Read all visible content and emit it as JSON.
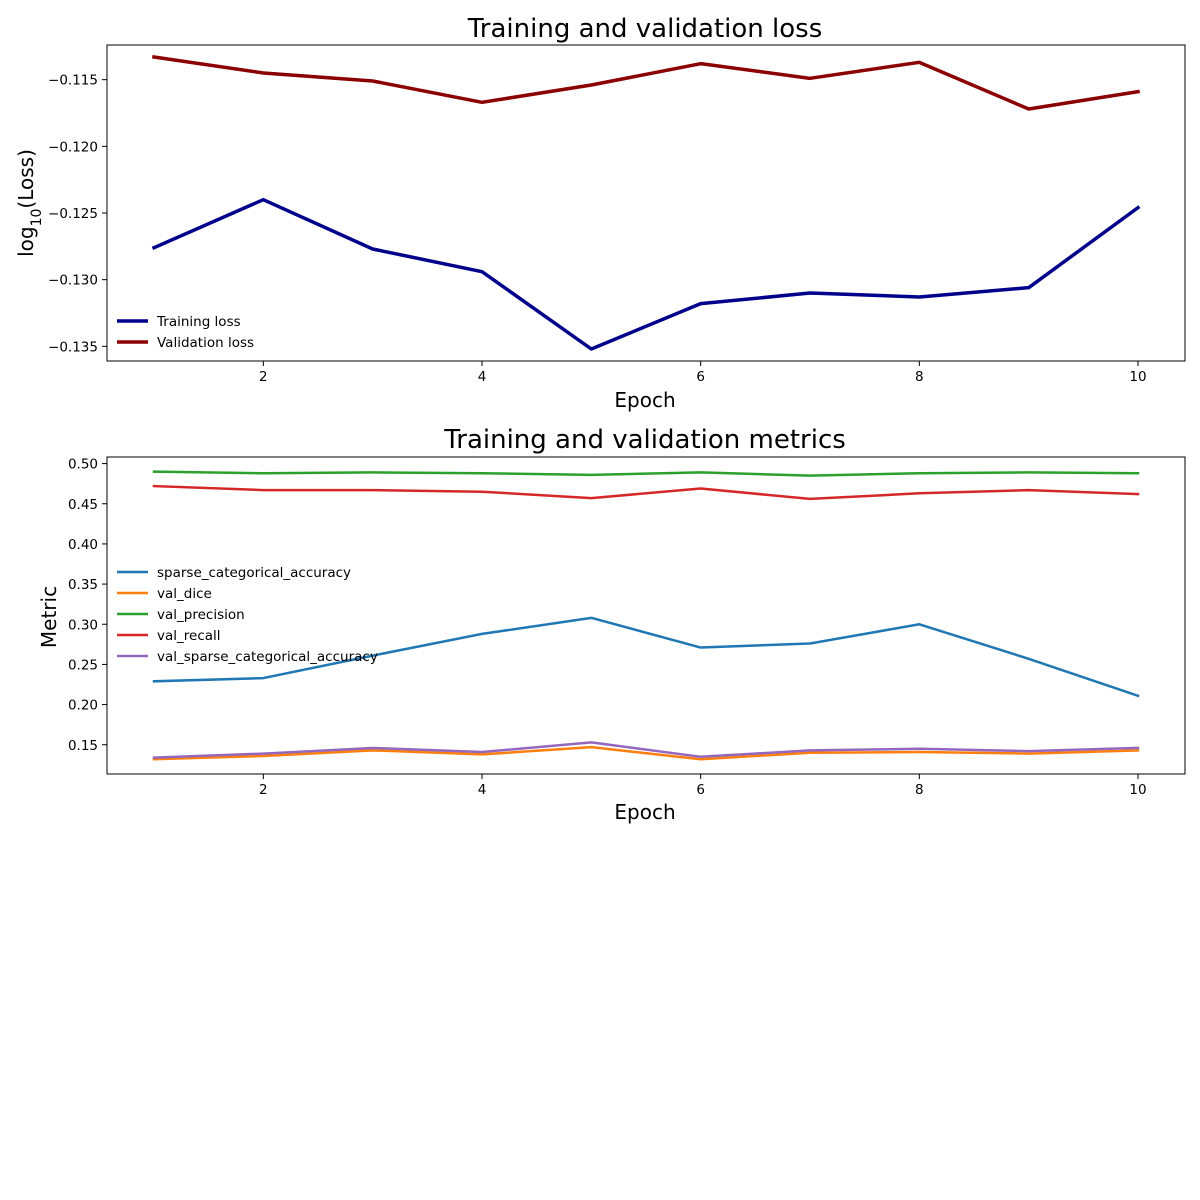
{
  "chart_data": [
    {
      "type": "line",
      "title": "Training and validation loss",
      "xlabel": "Epoch",
      "ylabel_base": "log",
      "ylabel_sub": "10",
      "ylabel_rest": "(Loss)",
      "xlim": [
        0.57,
        10.43
      ],
      "ylim": [
        -0.1361,
        -0.1124
      ],
      "xticks": [
        2,
        4,
        6,
        8,
        10
      ],
      "yticks": [
        -0.135,
        -0.13,
        -0.125,
        -0.12,
        -0.115
      ],
      "ytick_labels": [
        "−0.135",
        "−0.130",
        "−0.125",
        "−0.120",
        "−0.115"
      ],
      "legend_position": "lower-left",
      "x": [
        1,
        2,
        3,
        4,
        5,
        6,
        7,
        8,
        9,
        10
      ],
      "series": [
        {
          "name": "Training loss",
          "color": "#00008b",
          "width": 3.5,
          "values": [
            -0.1276,
            -0.124,
            -0.1277,
            -0.1294,
            -0.1352,
            -0.1318,
            -0.131,
            -0.1313,
            -0.1306,
            -0.1246
          ]
        },
        {
          "name": "Validation loss",
          "color": "#8b0000",
          "width": 3.5,
          "values": [
            -0.1133,
            -0.1145,
            -0.1151,
            -0.1167,
            -0.1154,
            -0.1138,
            -0.1149,
            -0.1137,
            -0.1172,
            -0.1159
          ]
        }
      ]
    },
    {
      "type": "line",
      "title": "Training and validation metrics",
      "xlabel": "Epoch",
      "ylabel": "Metric",
      "xlim": [
        0.57,
        10.43
      ],
      "ylim": [
        0.1136,
        0.5082
      ],
      "xticks": [
        2,
        4,
        6,
        8,
        10
      ],
      "yticks": [
        0.15,
        0.2,
        0.25,
        0.3,
        0.35,
        0.4,
        0.45,
        0.5
      ],
      "ytick_labels": [
        "0.15",
        "0.20",
        "0.25",
        "0.30",
        "0.35",
        "0.40",
        "0.45",
        "0.50"
      ],
      "legend_position": "center-left",
      "x": [
        1,
        2,
        3,
        4,
        5,
        6,
        7,
        8,
        9,
        10
      ],
      "series": [
        {
          "name": "sparse_categorical_accuracy",
          "color": "#1f77b4",
          "width": 2.5,
          "values": [
            0.229,
            0.233,
            0.261,
            0.288,
            0.308,
            0.271,
            0.276,
            0.3,
            0.257,
            0.211
          ]
        },
        {
          "name": "val_dice",
          "color": "#ff7f0e",
          "width": 2.5,
          "values": [
            0.132,
            0.136,
            0.143,
            0.138,
            0.147,
            0.132,
            0.14,
            0.141,
            0.139,
            0.143
          ]
        },
        {
          "name": "val_precision",
          "color": "#2ca02c",
          "width": 2.5,
          "values": [
            0.49,
            0.488,
            0.489,
            0.488,
            0.486,
            0.489,
            0.485,
            0.488,
            0.489,
            0.488
          ]
        },
        {
          "name": "val_recall",
          "color": "#d62728",
          "width": 2.5,
          "values": [
            0.472,
            0.467,
            0.467,
            0.465,
            0.457,
            0.469,
            0.456,
            0.463,
            0.467,
            0.462
          ]
        },
        {
          "name": "val_sparse_categorical_accuracy",
          "color": "#9467bd",
          "width": 2.5,
          "values": [
            0.134,
            0.139,
            0.146,
            0.141,
            0.153,
            0.135,
            0.143,
            0.145,
            0.142,
            0.146
          ]
        }
      ]
    }
  ]
}
